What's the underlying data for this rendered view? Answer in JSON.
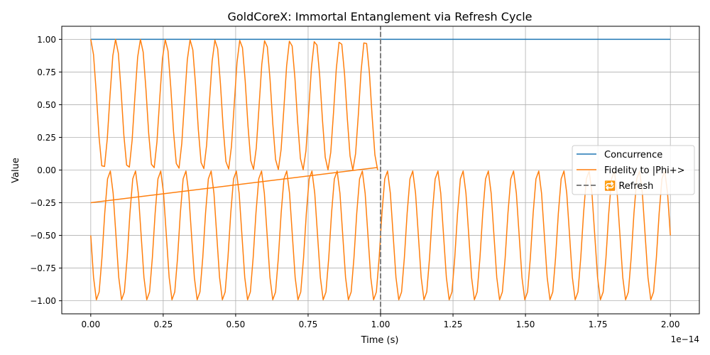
{
  "chart_data": {
    "type": "line",
    "title": "GoldCoreX: Immortal Entanglement via Refresh Cycle",
    "xlabel": "Time (s)",
    "ylabel": "Value",
    "x_offset_text": "1e−14",
    "xlim": [
      -0.1,
      2.1
    ],
    "ylim": [
      -1.1,
      1.1
    ],
    "x_ticks": [
      0.0,
      0.25,
      0.5,
      0.75,
      1.0,
      1.25,
      1.5,
      1.75,
      2.0
    ],
    "x_tick_labels": [
      "0.00",
      "0.25",
      "0.50",
      "0.75",
      "1.00",
      "1.25",
      "1.50",
      "1.75",
      "2.00"
    ],
    "y_ticks": [
      -1.0,
      -0.75,
      -0.5,
      -0.25,
      0.0,
      0.25,
      0.5,
      0.75,
      1.0
    ],
    "y_tick_labels": [
      "−1.00",
      "−0.75",
      "−0.50",
      "−0.25",
      "0.00",
      "0.25",
      "0.50",
      "0.75",
      "1.00"
    ],
    "grid": true,
    "legend_position": "center-right",
    "series": [
      {
        "name": "Concurrence",
        "color": "#1f77b4",
        "x": [
          0.0,
          2.0
        ],
        "y": [
          1.0,
          1.0
        ]
      },
      {
        "name": "Fidelity to |Phi+>",
        "color": "#ff7f0e",
        "segments": [
          {
            "model": "upper_oscillation",
            "x_start": 0.0,
            "x_end": 0.99,
            "y_min": 0.0,
            "y_max": 1.0,
            "cycles": 11.5
          },
          {
            "model": "linear",
            "x": [
              0.0,
              0.99
            ],
            "y": [
              -0.25,
              0.02
            ]
          },
          {
            "model": "lower_oscillation",
            "x_start": 0.0,
            "x_end": 2.0,
            "y_min": -1.0,
            "y_max": 0.0,
            "cycles": 23
          }
        ]
      },
      {
        "name": "🔁 Refresh",
        "color": "#808080",
        "style": "dashed",
        "x": [
          1.0,
          1.0
        ],
        "y": [
          -1.1,
          1.1
        ]
      }
    ]
  }
}
